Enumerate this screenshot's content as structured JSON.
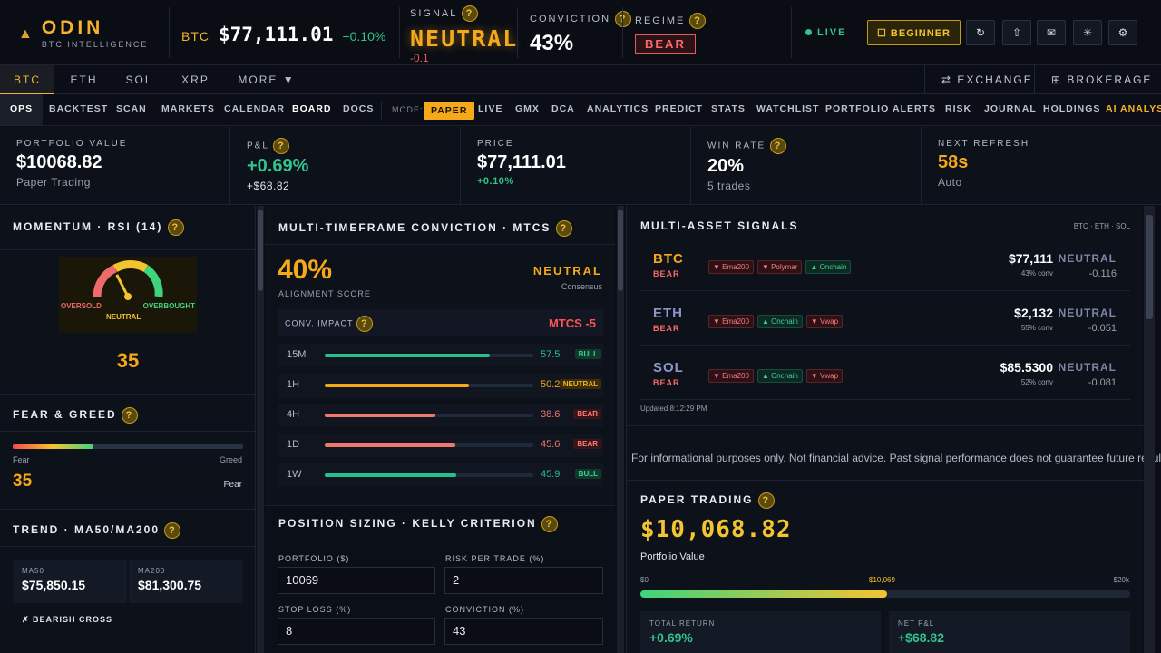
{
  "header": {
    "logo_name": "ODIN",
    "logo_sub": "BTC INTELLIGENCE",
    "ticker_symbol": "BTC",
    "ticker_price": "$77,111.01",
    "ticker_change": "+0.10%",
    "signal_label": "SIGNAL",
    "signal_value": "NEUTRAL",
    "signal_delta": "-0.1",
    "conviction_label": "CONVICTION",
    "conviction_value": "43%",
    "regime_label": "REGIME",
    "regime_value": "BEAR",
    "live_label": "LIVE",
    "beginner_label": "☐ BEGINNER",
    "icons": [
      "refresh-icon",
      "share-icon",
      "mail-icon",
      "sun-icon",
      "gear-icon"
    ],
    "icon_glyphs": [
      "↻",
      "⇧",
      "✉",
      "✳",
      "⚙"
    ]
  },
  "asset_tabs": [
    "BTC",
    "ETH",
    "SOL",
    "XRP",
    "MORE ▼"
  ],
  "right_tabs": {
    "exchange": "⇄ EXCHANGE",
    "brokerage": "⊞ BROKERAGE"
  },
  "nav": {
    "left": [
      "OPS",
      "BACKTEST",
      "SCAN",
      "MARKETS",
      "CALENDAR",
      "BOARD",
      "DOCS"
    ],
    "mode_label": "MODE:",
    "modes": [
      "PAPER",
      "LIVE",
      "GMX",
      "DCA",
      "ANALYTICS",
      "PREDICT",
      "STATS",
      "WATCHLIST",
      "PORTFOLIO",
      "ALERTS",
      "RISK",
      "JOURNAL",
      "HOLDINGS",
      "AI ANALYS"
    ]
  },
  "stats": {
    "portfolio": {
      "label": "PORTFOLIO VALUE",
      "value": "$10068.82",
      "sub": "Paper Trading"
    },
    "pnl": {
      "label": "P&L",
      "value": "+0.69%",
      "sub": "+$68.82"
    },
    "price": {
      "label": "PRICE",
      "value": "$77,111.01",
      "sub": "+0.10%"
    },
    "winrate": {
      "label": "WIN RATE",
      "value": "20%",
      "sub": "5 trades"
    },
    "refresh": {
      "label": "NEXT REFRESH",
      "value": "58s",
      "sub": "Auto"
    }
  },
  "momentum": {
    "title": "MOMENTUM · RSI (14)",
    "oversold": "OVERSOLD",
    "overbought": "OVERBOUGHT",
    "neutral": "NEUTRAL",
    "value": "35",
    "rsi": 35
  },
  "fear_greed": {
    "title": "FEAR & GREED",
    "left": "Fear",
    "right": "Greed",
    "value": "35",
    "state": "Fear",
    "level": 35
  },
  "trend": {
    "title": "TREND · MA50/MA200",
    "ma50_label": "MA50",
    "ma50": "$75,850.15",
    "ma200_label": "MA200",
    "ma200": "$81,300.75",
    "cross": "✗ BEARISH CROSS"
  },
  "mtcs": {
    "title": "MULTI-TIMEFRAME CONVICTION · MTCS",
    "score": "40%",
    "score_label": "ALIGNMENT SCORE",
    "consensus": "NEUTRAL",
    "consensus_label": "Consensus",
    "impact_label": "CONV. IMPACT",
    "impact_value": "MTCS -5",
    "rows": [
      {
        "tf": "15M",
        "value": "57.5",
        "level": 57.5,
        "tag": "BULL",
        "color": "#26c08c"
      },
      {
        "tf": "1H",
        "value": "50.2",
        "level": 50.2,
        "tag": "NEUTRAL",
        "color": "#f4a81a"
      },
      {
        "tf": "4H",
        "value": "38.6",
        "level": 38.6,
        "tag": "BEAR",
        "color": "#f0776b"
      },
      {
        "tf": "1D",
        "value": "45.6",
        "level": 45.6,
        "tag": "BEAR",
        "color": "#f0776b"
      },
      {
        "tf": "1W",
        "value": "45.9",
        "level": 45.9,
        "tag": "BULL",
        "color": "#26c08c"
      }
    ]
  },
  "kelly": {
    "title": "POSITION SIZING · KELLY CRITERION",
    "portfolio_label": "PORTFOLIO ($)",
    "portfolio": "10069",
    "risk_label": "RISK PER TRADE (%)",
    "risk": "2",
    "stop_label": "STOP LOSS (%)",
    "stop": "8",
    "conv_label": "CONVICTION (%)",
    "conv": "43"
  },
  "signals": {
    "title": "MULTI-ASSET SIGNALS",
    "sub": "BTC · ETH · SOL",
    "assets": [
      {
        "sym": "BTC",
        "regime": "BEAR",
        "chips": [
          [
            "▼ Ema200",
            "dn"
          ],
          [
            "▼ Polymar",
            "dn"
          ],
          [
            "▲ Onchain",
            "up"
          ]
        ],
        "price": "$77,111",
        "conv": "43% conv",
        "signal": "NEUTRAL",
        "delta": "-0.116",
        "color": "#f4a81a"
      },
      {
        "sym": "ETH",
        "regime": "BEAR",
        "chips": [
          [
            "▼ Ema200",
            "dn"
          ],
          [
            "▲ Onchain",
            "up"
          ],
          [
            "▼ Vwap",
            "dn"
          ]
        ],
        "price": "$2,132",
        "conv": "55% conv",
        "signal": "NEUTRAL",
        "delta": "-0.051",
        "color": "#8b95c8"
      },
      {
        "sym": "SOL",
        "regime": "BEAR",
        "chips": [
          [
            "▼ Ema200",
            "dn"
          ],
          [
            "▲ Onchain",
            "up"
          ],
          [
            "▼ Vwap",
            "dn"
          ]
        ],
        "price": "$85.5300",
        "conv": "52% conv",
        "signal": "NEUTRAL",
        "delta": "-0.081",
        "color": "#8b95c8"
      }
    ],
    "updated": "Updated 8:12:29 PM"
  },
  "disclaimer": "For informational purposes only. Not financial advice. Past signal performance does not guarantee future results.",
  "paper": {
    "title": "PAPER TRADING",
    "value": "$10,068.82",
    "value_label": "Portfolio Value",
    "min": "$0",
    "mid": "$10,069",
    "max": "$20k",
    "progress": 0.5034,
    "total_return_label": "TOTAL RETURN",
    "total_return": "+0.69%",
    "net_pnl_label": "NET P&L",
    "net_pnl": "+$68.82"
  }
}
